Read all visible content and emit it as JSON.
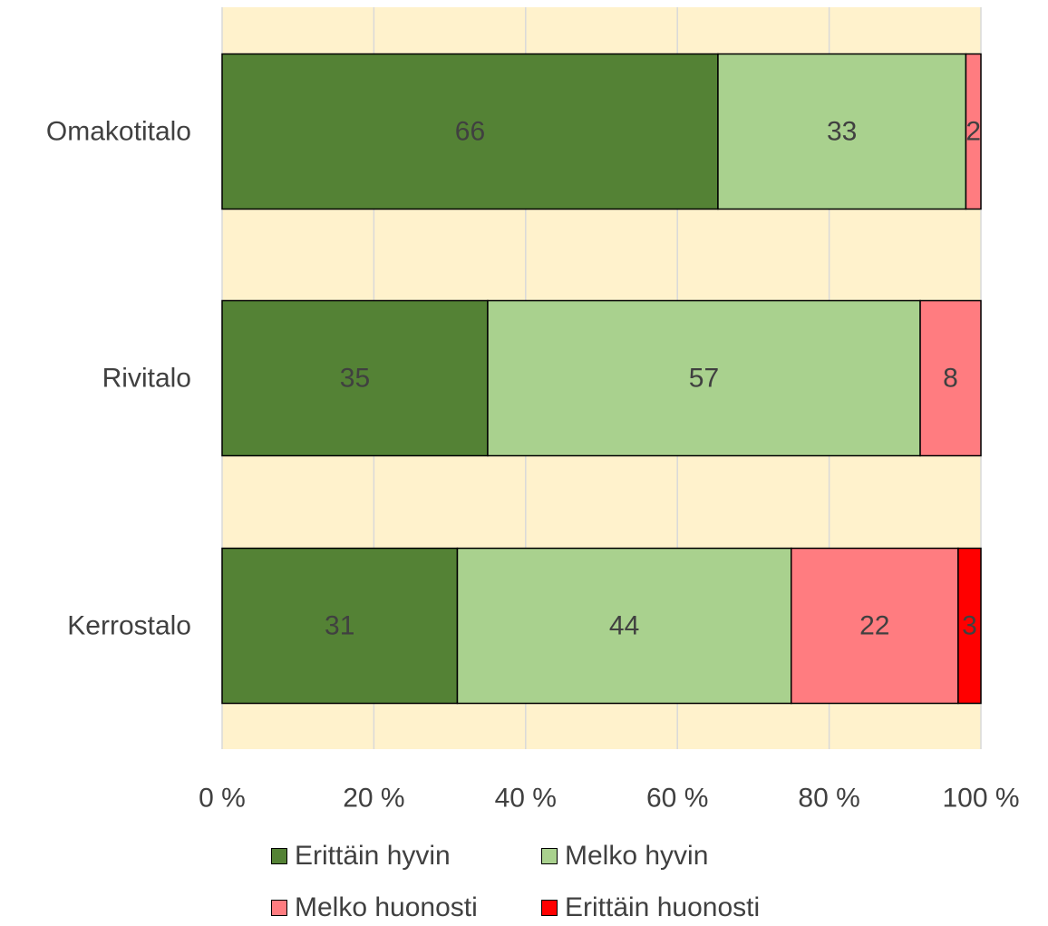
{
  "chart_data": {
    "type": "bar",
    "orientation": "horizontal",
    "stacked": "percent",
    "title": "",
    "xlabel": "",
    "ylabel": "",
    "categories": [
      "Omakotitalo",
      "Rivitalo",
      "Kerrostalo"
    ],
    "xlim": [
      0,
      100
    ],
    "x_ticks": [
      "0 %",
      "20 %",
      "40 %",
      "60 %",
      "80 %",
      "100 %"
    ],
    "grid": true,
    "legend_position": "bottom",
    "plot_background": "#FFF2CC",
    "series": [
      {
        "name": "Erittäin hyvin",
        "color": "#548235",
        "values": [
          66,
          35,
          31
        ]
      },
      {
        "name": "Melko hyvin",
        "color": "#A9D18E",
        "values": [
          33,
          57,
          44
        ]
      },
      {
        "name": "Melko huonosti",
        "color": "#FF7C80",
        "values": [
          2,
          8,
          22
        ]
      },
      {
        "name": "Erittäin huonosti",
        "color": "#FF0000",
        "values": [
          null,
          null,
          3
        ]
      }
    ]
  }
}
